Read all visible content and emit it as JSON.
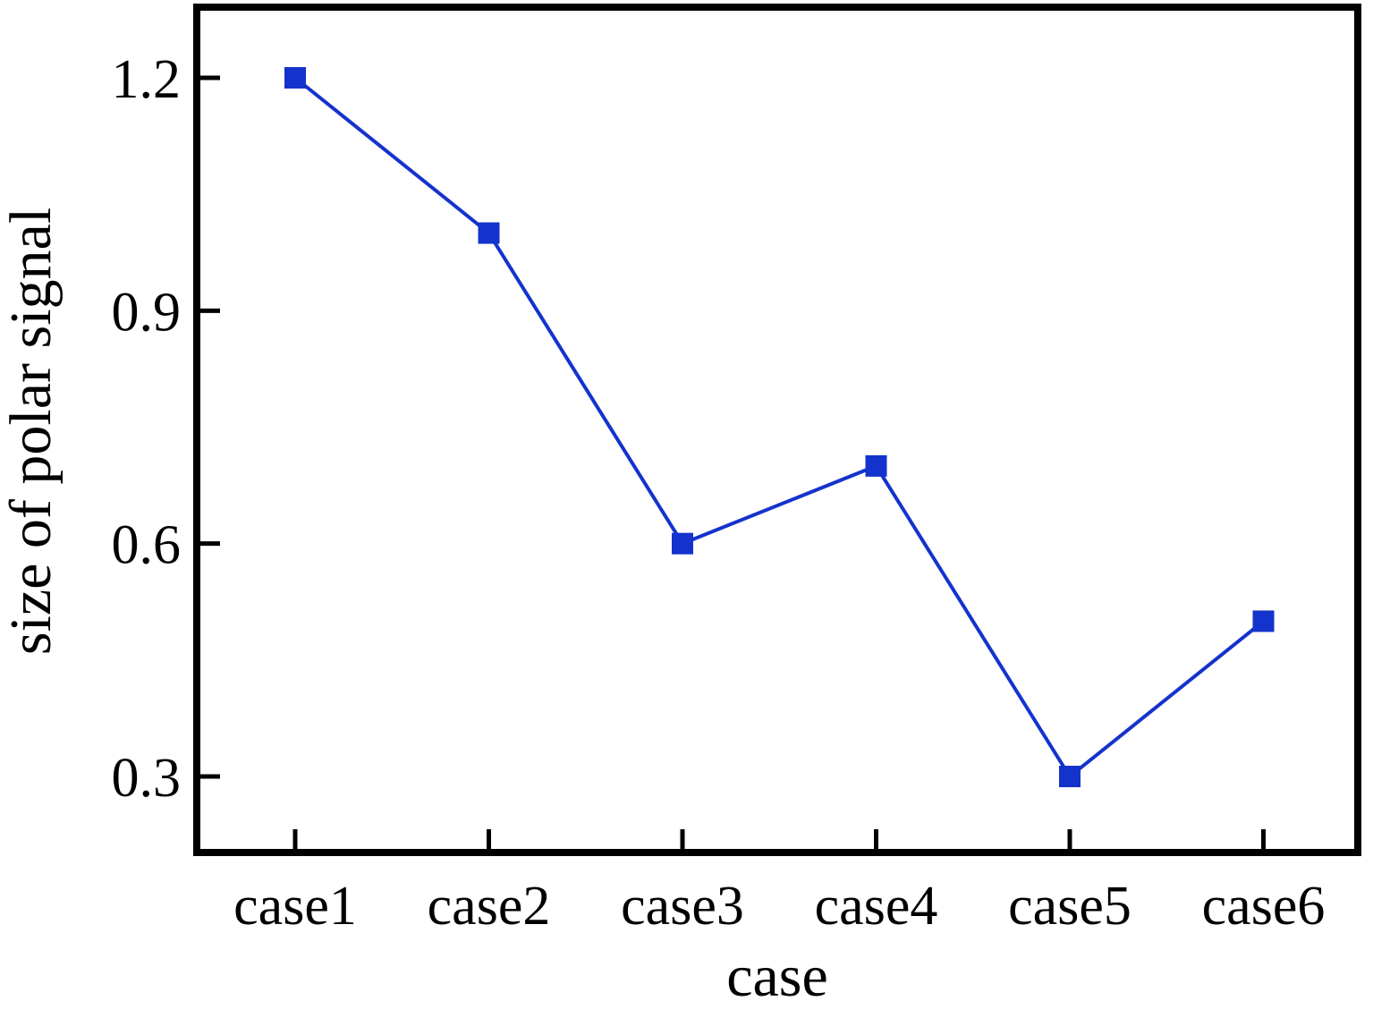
{
  "chart_data": {
    "type": "line",
    "categories": [
      "case1",
      "case2",
      "case3",
      "case4",
      "case5",
      "case6"
    ],
    "values": [
      1.2,
      1.0,
      0.6,
      0.7,
      0.3,
      0.5
    ],
    "title": "",
    "xlabel": "case",
    "ylabel": "size of polar signal",
    "yticks": [
      0.3,
      0.6,
      0.9,
      1.2
    ],
    "ytick_labels": [
      "0.3",
      "0.6",
      "0.9",
      "1.2"
    ],
    "ylim": [
      0.2,
      1.3
    ],
    "grid": false,
    "legend_position": "none",
    "marker": "square",
    "line_color": "#1433cc",
    "marker_color": "#1433cc",
    "axis_color": "#000000",
    "text_color": "#000000",
    "background_color": "#ffffff"
  }
}
